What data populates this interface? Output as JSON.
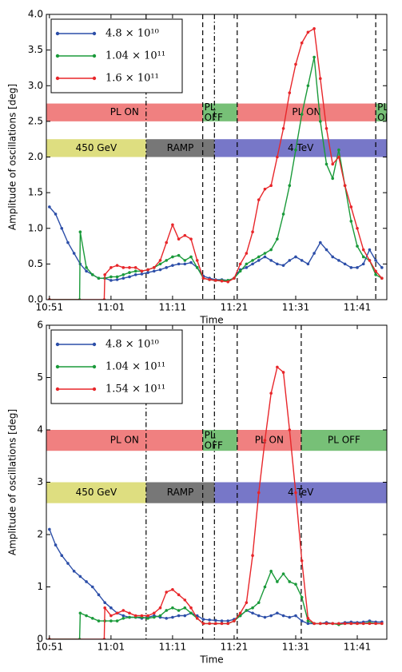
{
  "chart_data": [
    {
      "type": "line",
      "xlabel": "Time",
      "ylabel": "Amplitude of oscillations [deg]",
      "xlim": [
        650.5,
        705.8
      ],
      "ylim": [
        0,
        4
      ],
      "xticks": [
        {
          "value": 651,
          "label": "10:51"
        },
        {
          "value": 661,
          "label": "11:01"
        },
        {
          "value": 671,
          "label": "11:11"
        },
        {
          "value": 681,
          "label": "11:21"
        },
        {
          "value": 691,
          "label": "11:31"
        },
        {
          "value": 701,
          "label": "11:41"
        }
      ],
      "yticks": [
        {
          "value": 0,
          "label": "0.0"
        },
        0.5,
        {
          "value": 1,
          "label": "1.0"
        },
        1.5,
        {
          "value": 2,
          "label": "2.0"
        },
        2.5,
        {
          "value": 3,
          "label": "3.0"
        },
        3.5,
        {
          "value": 4,
          "label": "4.0"
        }
      ],
      "legend": "upper left",
      "vlines": [
        {
          "x": 666.7,
          "style": "dashdot"
        },
        {
          "x": 675.9,
          "style": "dashed"
        },
        {
          "x": 677.8,
          "style": "dashdot"
        },
        {
          "x": 681.5,
          "style": "dashed"
        },
        {
          "x": 704,
          "style": "dashed"
        }
      ],
      "bands": [
        {
          "label": "PL ON",
          "color": "#f08080",
          "x": [
            650.5,
            675.9
          ],
          "y": [
            2.5,
            2.75
          ]
        },
        {
          "label": "PL OFF",
          "color": "#77c077",
          "x": [
            675.9,
            681.5
          ],
          "y": [
            2.5,
            2.75
          ]
        },
        {
          "label": "PL ON",
          "color": "#f08080",
          "x": [
            681.5,
            704
          ],
          "y": [
            2.5,
            2.75
          ]
        },
        {
          "label": "PL OFF",
          "color": "#77c077",
          "x": [
            704,
            705.8
          ],
          "y": [
            2.5,
            2.75
          ]
        },
        {
          "label": "450 GeV",
          "color": "#dede80",
          "x": [
            650.5,
            666.7
          ],
          "y": [
            2.0,
            2.25
          ]
        },
        {
          "label": "RAMP",
          "color": "#777777",
          "x": [
            666.7,
            677.8
          ],
          "y": [
            2.0,
            2.25
          ]
        },
        {
          "label": "4 TeV",
          "color": "#7777c8",
          "x": [
            677.8,
            705.8
          ],
          "y": [
            2.0,
            2.25
          ]
        }
      ],
      "series": [
        {
          "name": "4.8 × 10¹⁰",
          "color": "#2c4ea8",
          "x": [
            651,
            652,
            653,
            654,
            655,
            656,
            657,
            658,
            659,
            660,
            661,
            662,
            663,
            664,
            665,
            666,
            667,
            668,
            669,
            670,
            671,
            672,
            673,
            674,
            675,
            676,
            677,
            678,
            679,
            680,
            681,
            682,
            683,
            684,
            685,
            686,
            687,
            688,
            689,
            690,
            691,
            692,
            693,
            694,
            695,
            696,
            697,
            698,
            699,
            700,
            701,
            702,
            703,
            704,
            705
          ],
          "values": [
            1.3,
            1.2,
            1.0,
            0.8,
            0.65,
            0.5,
            0.4,
            0.35,
            0.3,
            0.3,
            0.27,
            0.28,
            0.3,
            0.32,
            0.35,
            0.36,
            0.38,
            0.4,
            0.42,
            0.45,
            0.48,
            0.5,
            0.5,
            0.52,
            0.45,
            0.33,
            0.3,
            0.28,
            0.28,
            0.27,
            0.3,
            0.42,
            0.45,
            0.5,
            0.55,
            0.6,
            0.55,
            0.5,
            0.48,
            0.55,
            0.6,
            0.55,
            0.5,
            0.65,
            0.8,
            0.7,
            0.6,
            0.55,
            0.5,
            0.45,
            0.45,
            0.5,
            0.7,
            0.55,
            0.45
          ]
        },
        {
          "name": "1.04 × 10¹¹",
          "color": "#1a9a3a",
          "x": [
            651,
            655.9,
            656,
            657,
            658,
            659,
            660,
            661,
            662,
            663,
            664,
            665,
            666,
            667,
            668,
            669,
            670,
            671,
            672,
            673,
            674,
            675,
            676,
            677,
            678,
            679,
            680,
            681,
            682,
            683,
            684,
            685,
            686,
            687,
            688,
            689,
            690,
            691,
            692,
            693,
            694,
            695,
            696,
            697,
            698,
            699,
            700,
            701,
            702,
            703,
            704,
            705
          ],
          "values": [
            0,
            0,
            0.95,
            0.45,
            0.35,
            0.3,
            0.3,
            0.32,
            0.32,
            0.35,
            0.38,
            0.4,
            0.4,
            0.42,
            0.45,
            0.5,
            0.55,
            0.6,
            0.62,
            0.55,
            0.6,
            0.45,
            0.3,
            0.28,
            0.27,
            0.27,
            0.27,
            0.3,
            0.4,
            0.5,
            0.55,
            0.6,
            0.65,
            0.7,
            0.85,
            1.2,
            1.6,
            2.1,
            2.6,
            3.0,
            3.4,
            2.5,
            1.9,
            1.7,
            2.1,
            1.6,
            1.1,
            0.75,
            0.6,
            0.55,
            0.35,
            0.3
          ]
        },
        {
          "name": "1.6 × 10¹¹",
          "color": "#e8262a",
          "x": [
            651,
            659.9,
            660,
            661,
            662,
            663,
            664,
            665,
            666,
            667,
            668,
            669,
            670,
            671,
            672,
            673,
            674,
            675,
            676,
            677,
            678,
            679,
            680,
            681,
            682,
            683,
            684,
            685,
            686,
            687,
            688,
            689,
            690,
            691,
            692,
            693,
            694,
            695,
            696,
            697,
            698,
            699,
            700,
            701,
            702,
            703,
            704,
            705
          ],
          "values": [
            0,
            0,
            0.35,
            0.45,
            0.48,
            0.45,
            0.45,
            0.45,
            0.4,
            0.42,
            0.45,
            0.55,
            0.8,
            1.05,
            0.85,
            0.9,
            0.85,
            0.55,
            0.3,
            0.28,
            0.27,
            0.26,
            0.25,
            0.3,
            0.5,
            0.65,
            0.95,
            1.4,
            1.55,
            1.6,
            2.0,
            2.4,
            2.9,
            3.3,
            3.6,
            3.75,
            3.8,
            3.1,
            2.4,
            1.9,
            2.0,
            1.6,
            1.3,
            1.0,
            0.7,
            0.55,
            0.4,
            0.3
          ]
        }
      ]
    },
    {
      "type": "line",
      "xlabel": "Time",
      "ylabel": "Amplitude of oscillations [deg]",
      "xlim": [
        650.5,
        705.8
      ],
      "ylim": [
        0,
        6
      ],
      "xticks": [
        {
          "value": 651,
          "label": "10:51"
        },
        {
          "value": 661,
          "label": "11:01"
        },
        {
          "value": 671,
          "label": "11:11"
        },
        {
          "value": 681,
          "label": "11:21"
        },
        {
          "value": 691,
          "label": "11:31"
        },
        {
          "value": 701,
          "label": "11:41"
        }
      ],
      "yticks": [
        0,
        1,
        2,
        3,
        4,
        5,
        6
      ],
      "legend": "upper left",
      "vlines": [
        {
          "x": 666.7,
          "style": "dashdot"
        },
        {
          "x": 675.9,
          "style": "dashed"
        },
        {
          "x": 677.8,
          "style": "dashdot"
        },
        {
          "x": 681.5,
          "style": "dashed"
        },
        {
          "x": 691.9,
          "style": "dashed"
        }
      ],
      "bands": [
        {
          "label": "PL ON",
          "color": "#f08080",
          "x": [
            650.5,
            675.9
          ],
          "y": [
            3.6,
            4.0
          ]
        },
        {
          "label": "PL OFF",
          "color": "#77c077",
          "x": [
            675.9,
            681.5
          ],
          "y": [
            3.6,
            4.0
          ]
        },
        {
          "label": "PL ON",
          "color": "#f08080",
          "x": [
            681.5,
            691.9
          ],
          "y": [
            3.6,
            4.0
          ]
        },
        {
          "label": "PL OFF",
          "color": "#77c077",
          "x": [
            691.9,
            705.8
          ],
          "y": [
            3.6,
            4.0
          ]
        },
        {
          "label": "450 GeV",
          "color": "#dede80",
          "x": [
            650.5,
            666.7
          ],
          "y": [
            2.6,
            3.0
          ]
        },
        {
          "label": "RAMP",
          "color": "#777777",
          "x": [
            666.7,
            677.8
          ],
          "y": [
            2.6,
            3.0
          ]
        },
        {
          "label": "4 TeV",
          "color": "#7777c8",
          "x": [
            677.8,
            705.8
          ],
          "y": [
            2.6,
            3.0
          ]
        }
      ],
      "series": [
        {
          "name": "4.8 × 10¹⁰",
          "color": "#2c4ea8",
          "x": [
            651,
            652,
            653,
            654,
            655,
            656,
            657,
            658,
            659,
            660,
            661,
            662,
            663,
            664,
            665,
            666,
            667,
            668,
            669,
            670,
            671,
            672,
            673,
            674,
            675,
            676,
            677,
            678,
            679,
            680,
            681,
            682,
            683,
            684,
            685,
            686,
            687,
            688,
            689,
            690,
            691,
            692,
            693,
            694,
            695,
            696,
            697,
            698,
            699,
            700,
            701,
            702,
            703,
            704,
            705
          ],
          "values": [
            2.1,
            1.8,
            1.6,
            1.45,
            1.3,
            1.2,
            1.1,
            1.0,
            0.85,
            0.7,
            0.6,
            0.5,
            0.45,
            0.42,
            0.42,
            0.4,
            0.42,
            0.45,
            0.42,
            0.4,
            0.42,
            0.45,
            0.45,
            0.5,
            0.45,
            0.38,
            0.37,
            0.36,
            0.35,
            0.35,
            0.38,
            0.45,
            0.55,
            0.5,
            0.45,
            0.42,
            0.45,
            0.5,
            0.45,
            0.42,
            0.45,
            0.35,
            0.3,
            0.3,
            0.3,
            0.32,
            0.3,
            0.3,
            0.32,
            0.33,
            0.32,
            0.33,
            0.35,
            0.33,
            0.33
          ]
        },
        {
          "name": "1.04 × 10¹¹",
          "color": "#1a9a3a",
          "x": [
            651,
            655.9,
            656,
            657,
            658,
            659,
            660,
            661,
            662,
            663,
            664,
            665,
            666,
            667,
            668,
            669,
            670,
            671,
            672,
            673,
            674,
            675,
            676,
            677,
            678,
            679,
            680,
            681,
            682,
            683,
            684,
            685,
            686,
            687,
            688,
            689,
            690,
            691,
            692,
            693,
            694,
            695,
            696,
            697,
            698,
            699,
            700,
            701,
            702,
            703,
            704,
            705
          ],
          "values": [
            0,
            0,
            0.5,
            0.45,
            0.4,
            0.35,
            0.35,
            0.35,
            0.35,
            0.4,
            0.42,
            0.42,
            0.42,
            0.4,
            0.42,
            0.45,
            0.55,
            0.6,
            0.55,
            0.6,
            0.5,
            0.4,
            0.3,
            0.3,
            0.3,
            0.3,
            0.3,
            0.35,
            0.45,
            0.55,
            0.6,
            0.7,
            1.0,
            1.3,
            1.1,
            1.25,
            1.1,
            1.05,
            0.8,
            0.35,
            0.3,
            0.3,
            0.3,
            0.3,
            0.28,
            0.3,
            0.3,
            0.3,
            0.3,
            0.32,
            0.3,
            0.3
          ]
        },
        {
          "name": "1.54 × 10¹¹",
          "color": "#e8262a",
          "x": [
            651,
            659.9,
            660,
            661,
            662,
            663,
            664,
            665,
            666,
            667,
            668,
            669,
            670,
            671,
            672,
            673,
            674,
            675,
            676,
            677,
            678,
            679,
            680,
            681,
            682,
            683,
            684,
            685,
            686,
            687,
            688,
            689,
            690,
            691,
            692,
            693,
            694,
            695,
            696,
            697,
            698,
            699,
            700,
            701,
            702,
            703,
            704,
            705
          ],
          "values": [
            0,
            0,
            0.6,
            0.45,
            0.5,
            0.55,
            0.5,
            0.45,
            0.45,
            0.45,
            0.5,
            0.6,
            0.9,
            0.95,
            0.85,
            0.75,
            0.6,
            0.4,
            0.3,
            0.3,
            0.3,
            0.3,
            0.3,
            0.35,
            0.5,
            0.7,
            1.6,
            2.8,
            3.8,
            4.7,
            5.2,
            5.1,
            4.0,
            2.8,
            1.5,
            0.4,
            0.3,
            0.3,
            0.3,
            0.3,
            0.3,
            0.3,
            0.3,
            0.3,
            0.3,
            0.3,
            0.3,
            0.3
          ]
        }
      ]
    }
  ]
}
